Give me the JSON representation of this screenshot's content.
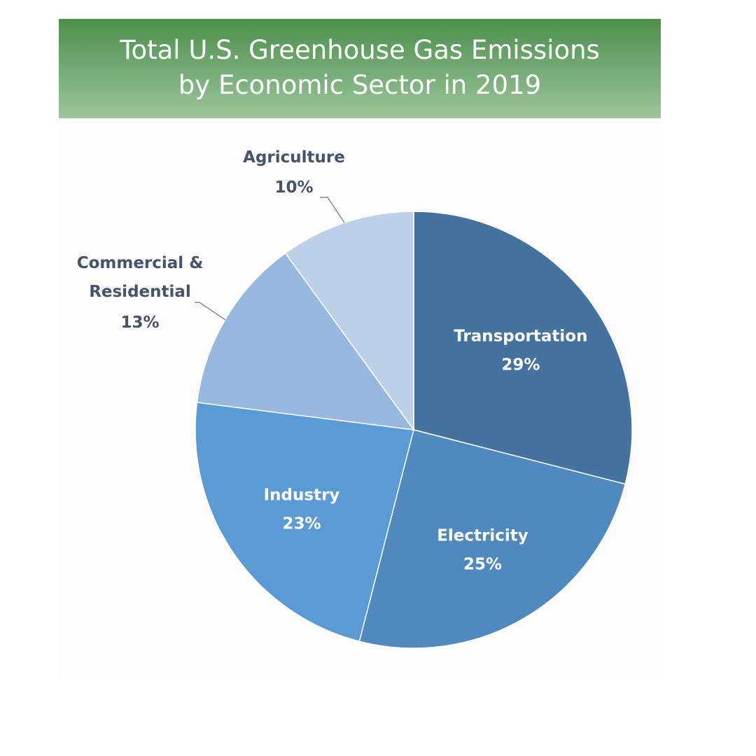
{
  "chart_data": {
    "type": "pie",
    "title": [
      "Total U.S. Greenhouse Gas Emissions",
      "by Economic Sector in 2019"
    ],
    "slices": [
      {
        "label": "Transportation",
        "value": 29,
        "value_label": "29%",
        "color": "#44739f",
        "label_position": "inside",
        "text_color": "#ffffff"
      },
      {
        "label": "Electricity",
        "value": 25,
        "value_label": "25%",
        "color": "#4f89bd",
        "label_position": "inside",
        "text_color": "#ffffff"
      },
      {
        "label": "Industry",
        "value": 23,
        "value_label": "23%",
        "color": "#5b9bd5",
        "label_position": "inside",
        "text_color": "#ffffff"
      },
      {
        "label": "Commercial & Residential",
        "label_lines": [
          "Commercial &",
          "Residential"
        ],
        "value": 13,
        "value_label": "13%",
        "color": "#97b8df",
        "label_position": "outside",
        "text_color": "#44546a"
      },
      {
        "label": "Agriculture",
        "value": 10,
        "value_label": "10%",
        "color": "#bdd0ea",
        "label_position": "outside",
        "text_color": "#44546a"
      }
    ],
    "start_angle": "top, clockwise"
  }
}
